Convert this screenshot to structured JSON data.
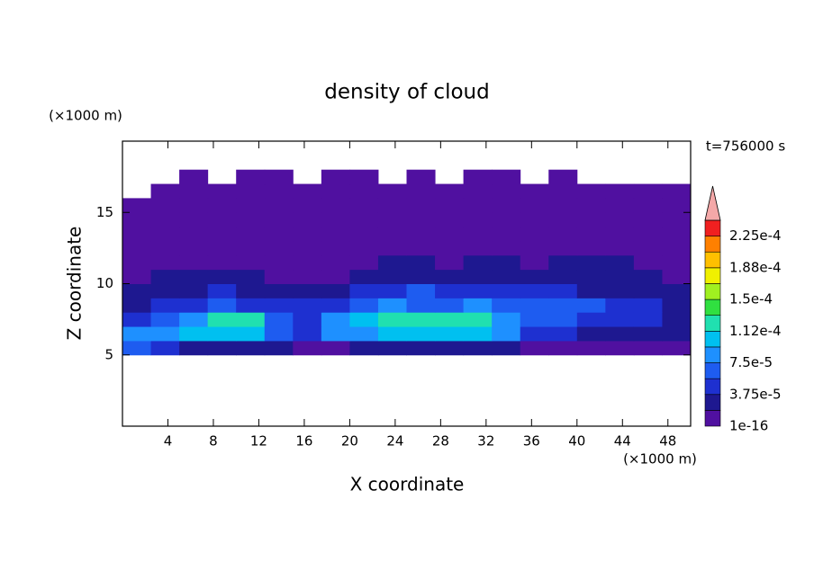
{
  "chart_data": {
    "type": "contour",
    "title": "density of cloud",
    "x_label": "X coordinate",
    "y_label": "Z coordinate",
    "x_unit": "(×1000 m)",
    "y_unit": "(×1000 m)",
    "time_label": "t=756000 s",
    "xlim": [
      0,
      50
    ],
    "ylim": [
      0,
      20
    ],
    "xticks": [
      4,
      8,
      12,
      16,
      20,
      24,
      28,
      32,
      36,
      40,
      44,
      48
    ],
    "yticks": [
      5,
      10,
      15
    ],
    "x_edges": [
      0,
      2.5,
      5,
      7.5,
      10,
      12.5,
      15,
      17.5,
      20,
      22.5,
      25,
      27.5,
      30,
      32.5,
      35,
      37.5,
      40,
      42.5,
      45,
      47.5,
      50
    ],
    "z_edges": [
      5,
      6,
      7,
      8,
      9,
      10,
      11,
      12,
      13,
      14,
      15,
      16,
      17,
      18
    ],
    "values": [
      [
        6e-05,
        4e-05,
        3e-05,
        3e-05,
        2e-05,
        2e-05,
        1e-05,
        1e-05,
        2e-05,
        2e-05,
        2e-05,
        2e-05,
        2e-05,
        2e-05,
        1e-05,
        1e-05,
        1e-05,
        1e-05,
        1e-05,
        1e-05
      ],
      [
        8e-05,
        9e-05,
        0.0001,
        0.00011,
        0.0001,
        6e-05,
        5e-05,
        8e-05,
        9e-05,
        0.0001,
        0.00011,
        0.0001,
        0.0001,
        8e-05,
        5e-05,
        4e-05,
        3e-05,
        3e-05,
        2e-05,
        2e-05
      ],
      [
        4e-05,
        6e-05,
        9e-05,
        0.000125,
        0.00012,
        7e-05,
        5e-05,
        8e-05,
        0.00011,
        0.00012,
        0.000125,
        0.00012,
        0.000115,
        9e-05,
        6e-05,
        7e-05,
        5e-05,
        4e-05,
        4e-05,
        3e-05
      ],
      [
        3e-05,
        4e-05,
        5e-05,
        6e-05,
        5e-05,
        4e-05,
        4e-05,
        5e-05,
        7e-05,
        8e-05,
        7e-05,
        6e-05,
        8e-05,
        7e-05,
        6e-05,
        7e-05,
        6e-05,
        5e-05,
        4e-05,
        3e-05
      ],
      [
        2e-05,
        3e-05,
        3e-05,
        4e-05,
        3e-05,
        3e-05,
        2e-05,
        3e-05,
        4e-05,
        5e-05,
        6e-05,
        5e-05,
        5e-05,
        4e-05,
        4e-05,
        4e-05,
        3e-05,
        3e-05,
        3e-05,
        2e-05
      ],
      [
        1.5e-05,
        2e-05,
        2e-05,
        2e-05,
        2e-05,
        1e-05,
        1e-05,
        1.5e-05,
        2e-05,
        2.5e-05,
        2.5e-05,
        2e-05,
        2.5e-05,
        2e-05,
        2e-05,
        2.5e-05,
        2e-05,
        2e-05,
        2e-05,
        1.5e-05
      ],
      [
        1e-05,
        1.5e-05,
        1.5e-05,
        1e-05,
        1e-05,
        5e-06,
        5e-06,
        5e-06,
        1e-05,
        2e-05,
        2e-05,
        1.5e-05,
        2e-05,
        2e-05,
        1.5e-05,
        2e-05,
        2e-05,
        2e-05,
        1.5e-05,
        1e-05
      ],
      [
        5e-06,
        5e-06,
        5e-06,
        5e-06,
        5e-06,
        5e-06,
        5e-06,
        5e-06,
        5e-06,
        5e-06,
        5e-06,
        5e-06,
        5e-06,
        5e-06,
        5e-06,
        5e-06,
        5e-06,
        5e-06,
        5e-06,
        5e-06
      ],
      [
        5e-06,
        5e-06,
        5e-06,
        5e-06,
        5e-06,
        5e-06,
        5e-06,
        5e-06,
        5e-06,
        5e-06,
        5e-06,
        5e-06,
        5e-06,
        5e-06,
        5e-06,
        5e-06,
        5e-06,
        5e-06,
        5e-06,
        5e-06
      ],
      [
        5e-06,
        5e-06,
        5e-06,
        5e-06,
        5e-06,
        5e-06,
        5e-06,
        5e-06,
        5e-06,
        5e-06,
        5e-06,
        5e-06,
        5e-06,
        5e-06,
        5e-06,
        5e-06,
        5e-06,
        5e-06,
        5e-06,
        5e-06
      ],
      [
        5e-06,
        5e-06,
        5e-06,
        5e-06,
        5e-06,
        5e-06,
        5e-06,
        5e-06,
        5e-06,
        5e-06,
        5e-06,
        5e-06,
        5e-06,
        5e-06,
        5e-06,
        5e-06,
        5e-06,
        5e-06,
        5e-06,
        5e-06
      ],
      [
        null,
        5e-06,
        5e-06,
        5e-06,
        5e-06,
        5e-06,
        5e-06,
        5e-06,
        5e-06,
        5e-06,
        5e-06,
        5e-06,
        5e-06,
        5e-06,
        5e-06,
        5e-06,
        5e-06,
        5e-06,
        5e-06,
        5e-06
      ],
      [
        null,
        null,
        5e-06,
        null,
        5e-06,
        5e-06,
        null,
        5e-06,
        5e-06,
        null,
        5e-06,
        null,
        5e-06,
        5e-06,
        null,
        5e-06,
        null,
        null,
        null,
        null
      ]
    ],
    "colorbar": {
      "levels": [
        1e-16,
        1.875e-05,
        {
          "value": 3.75e-05,
          "label": "3.75e-5"
        },
        5.625e-05,
        {
          "value": 7.5e-05,
          "label": "7.5e-5"
        },
        9.375e-05,
        {
          "value": 0.0001125,
          "label": "1.12e-4"
        },
        0.00013125,
        {
          "value": 0.00015,
          "label": "1.5e-4"
        },
        0.00016875,
        {
          "value": 0.0001875,
          "label": "1.88e-4"
        },
        0.00020625,
        {
          "value": 0.000225,
          "label": "2.25e-4"
        },
        0.00024375
      ],
      "colors": [
        "#5010a0",
        "#1e1890",
        "#1e30d0",
        "#1e5cf0",
        "#1e90ff",
        "#00c0f0",
        "#20e0b0",
        "#30e040",
        "#a0f020",
        "#f0f000",
        "#ffc000",
        "#ff8000",
        "#f02020"
      ],
      "extend_color": "#f4a8a8"
    }
  }
}
